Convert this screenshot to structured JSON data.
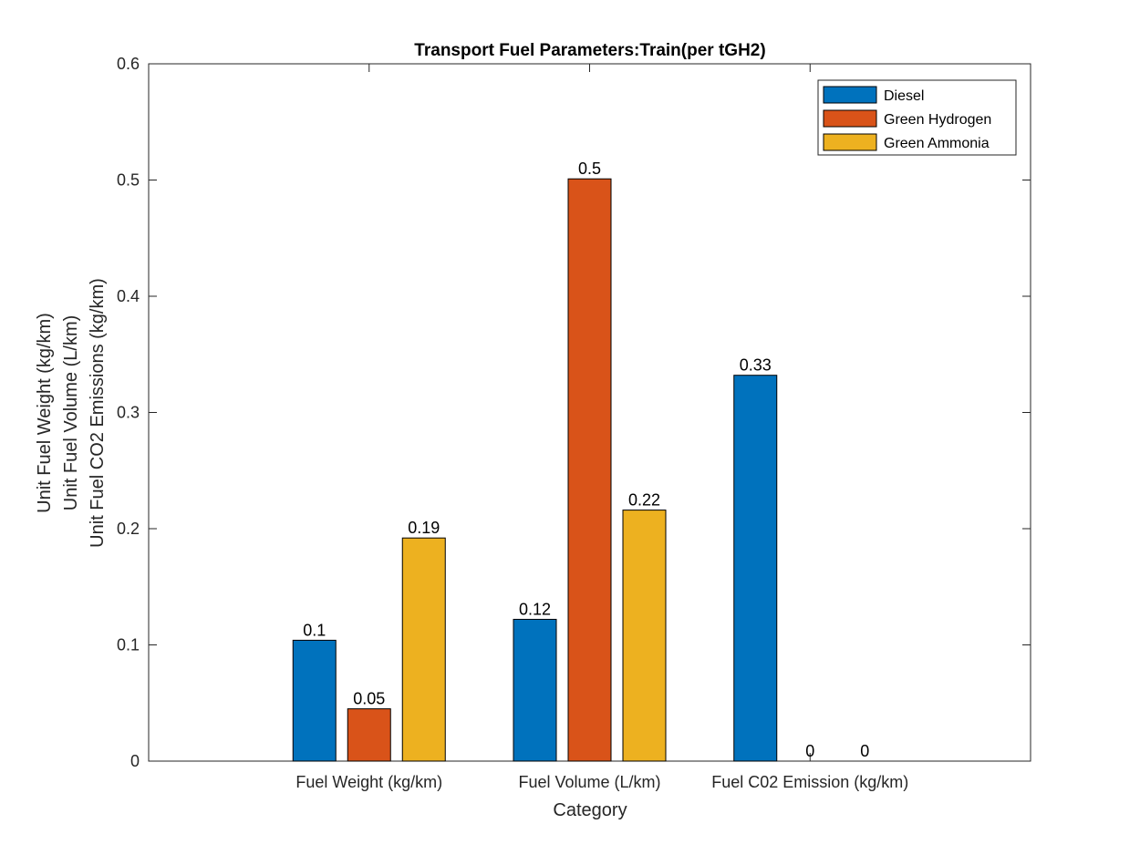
{
  "chart_data": {
    "type": "bar",
    "title": "Transport Fuel Parameters:Train(per tGH2)",
    "xlabel": "Category",
    "ylabel_lines": [
      "Unit Fuel Weight (kg/km)",
      "Unit Fuel Volume (L/km)",
      "Unit Fuel CO2 Emissions (kg/km)"
    ],
    "categories": [
      "Fuel Weight (kg/km)",
      "Fuel Volume (L/km)",
      "Fuel C02 Emission (kg/km)"
    ],
    "series": [
      {
        "name": "Diesel",
        "color": "#0072BD",
        "values": [
          0.104,
          0.122,
          0.332
        ],
        "labels": [
          "0.1",
          "0.12",
          "0.33"
        ]
      },
      {
        "name": "Green Hydrogen",
        "color": "#D95319",
        "values": [
          0.045,
          0.501,
          0
        ],
        "labels": [
          "0.05",
          "0.5",
          "0"
        ]
      },
      {
        "name": "Green Ammonia",
        "color": "#EDB120",
        "values": [
          0.192,
          0.216,
          0
        ],
        "labels": [
          "0.19",
          "0.22",
          "0"
        ]
      }
    ],
    "ylim": [
      0,
      0.6
    ],
    "yticks": [
      0,
      0.1,
      0.2,
      0.3,
      0.4,
      0.5,
      0.6
    ],
    "ytick_labels": [
      "0",
      "0.1",
      "0.2",
      "0.3",
      "0.4",
      "0.5",
      "0.6"
    ],
    "grid": false,
    "legend_position": "top-right"
  }
}
